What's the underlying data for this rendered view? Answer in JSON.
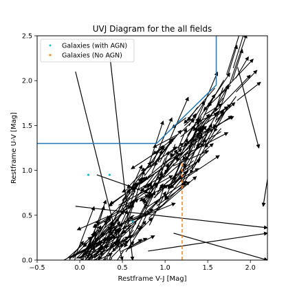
{
  "chart_data": {
    "type": "scatter",
    "title": "UVJ Diagram for the all fields",
    "xlabel": "Restframe V-J [Mag]",
    "ylabel": "Restframe U-V [Mag]",
    "xlim": [
      -0.5,
      2.2
    ],
    "ylim": [
      0.0,
      2.5
    ],
    "xticks": [
      -0.5,
      0.0,
      0.5,
      1.0,
      1.5,
      2.0
    ],
    "xtick_labels": [
      "−0.5",
      "0.0",
      "0.5",
      "1.0",
      "1.5",
      "2.0"
    ],
    "yticks": [
      0.0,
      0.5,
      1.0,
      1.5,
      2.0,
      2.5
    ],
    "ytick_labels": [
      "0.0",
      "0.5",
      "1.0",
      "1.5",
      "2.0",
      "2.5"
    ],
    "grid": false,
    "legend_position": "upper-left",
    "series": [
      {
        "name": "Galaxies (with AGN)",
        "color": "#17becf",
        "marker": "point",
        "points": [
          [
            0.1,
            0.95
          ],
          [
            0.35,
            0.95
          ],
          [
            0.62,
            0.43
          ]
        ]
      },
      {
        "name": "Galaxies (No AGN)",
        "color": "#ff7f0e",
        "marker": "point",
        "points": []
      }
    ],
    "selection_boundary": {
      "color": "#1f77b4",
      "points": [
        [
          -0.5,
          1.3
        ],
        [
          0.9,
          1.3
        ],
        [
          1.6,
          1.95
        ],
        [
          1.6,
          2.5
        ]
      ]
    },
    "vertical_reference": {
      "color": "#ff7f0e",
      "style": "dashed",
      "x": 1.2,
      "y_range": [
        0.0,
        1.1
      ]
    },
    "error_vectors": {
      "color": "#000000",
      "description_count": 260,
      "trend": {
        "slope": 1.25,
        "intercept": -0.3
      },
      "long_vectors": [
        [
          [
            -0.05,
            2.1
          ],
          [
            0.5,
            0.0
          ]
        ],
        [
          [
            0.35,
            2.3
          ],
          [
            0.62,
            0.0
          ]
        ],
        [
          [
            -0.05,
            0.6
          ],
          [
            2.2,
            0.36
          ]
        ],
        [
          [
            0.8,
            0.1
          ],
          [
            2.2,
            0.3
          ]
        ],
        [
          [
            1.1,
            0.3
          ],
          [
            2.2,
            0.0
          ]
        ],
        [
          [
            0.2,
            0.95
          ],
          [
            0.8,
            0.75
          ]
        ],
        [
          [
            1.85,
            2.15
          ],
          [
            2.1,
            1.25
          ]
        ],
        [
          [
            2.2,
            0.9
          ],
          [
            2.15,
            0.6
          ]
        ]
      ]
    }
  }
}
